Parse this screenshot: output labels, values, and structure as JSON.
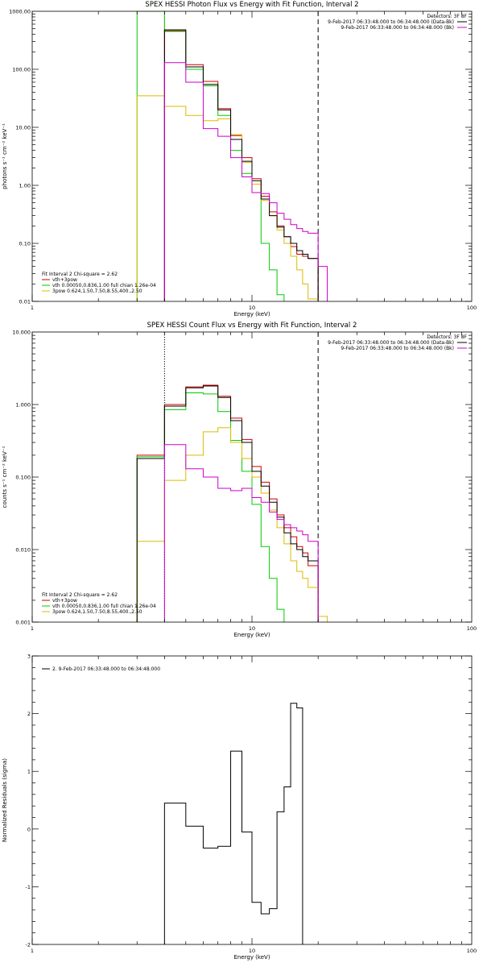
{
  "chart_data": [
    {
      "type": "line",
      "title": "SPEX HESSI Photon Flux vs Energy with Fit Function, Interval 2",
      "xlabel": "Energy (keV)",
      "ylabel": "photons s⁻¹ cm⁻² keV⁻¹",
      "xscale": "log",
      "yscale": "log",
      "xlim": [
        1,
        100
      ],
      "ylim": [
        0.01,
        1000
      ],
      "x_ticks": [
        1,
        10,
        100
      ],
      "x_tick_labels": [
        "1",
        "10",
        "100"
      ],
      "y_ticks": [
        0.01,
        0.1,
        1,
        10,
        100,
        1000
      ],
      "y_tick_labels": [
        "0.01",
        "0.10",
        "1.00",
        "10.00",
        "100.00",
        "1000.00"
      ],
      "detectors_label": "Detectors: 3F 8F",
      "legend_top_right": [
        {
          "label": "9-Feb-2017 06:33:48.000 to 06:34:48.000 (Data-Bk)",
          "color": "#000000"
        },
        {
          "label": "9-Feb-2017 06:33:48.000 to 06:34:48.000 (Bk)",
          "color": "#cc00cc"
        }
      ],
      "fit_legend_header": "Fit Interval 2   Chi-square = 2.62",
      "fit_legend": [
        {
          "label": "vth+3pow",
          "color": "#cc0000"
        },
        {
          "label": "vth 0.00050,0.836,1.00  full chian 1.26e-04",
          "color": "#00cc00"
        },
        {
          "label": "3pow 0.624,1.50,7.50,8.55,400.,2.50",
          "color": "#ddbb00"
        }
      ],
      "vlines": [
        {
          "x": 4.0,
          "style": "dotted",
          "color": "#cc00cc"
        },
        {
          "x": 20.0,
          "style": "dashed",
          "color": "#000000"
        }
      ],
      "edges": [
        3.0,
        4.0,
        5.0,
        6.0,
        7.0,
        8.0,
        9.0,
        10.0,
        11.0,
        12.0,
        13.0,
        14.0,
        15.0,
        16.0,
        17.0,
        18.0,
        20.0,
        22.0
      ],
      "series": [
        {
          "name": "vth+3pow",
          "color": "#cc0000",
          "values": [
            null,
            460,
            120,
            62,
            21,
            7.2,
            3.0,
            1.3,
            0.65,
            0.35,
            0.2,
            0.13,
            0.088,
            0.065,
            0.06,
            0.055,
            null
          ]
        },
        {
          "name": "vth",
          "color": "#00cc00",
          "values": [
            1000,
            450,
            100,
            52,
            16,
            4.0,
            1.6,
            0.75,
            0.1,
            0.035,
            0.013,
            null,
            null,
            null,
            null,
            null,
            null
          ]
        },
        {
          "name": "3pow",
          "color": "#ddbb00",
          "values": [
            35,
            23,
            16,
            13,
            14,
            7.5,
            2.5,
            1.05,
            0.55,
            0.3,
            0.17,
            0.1,
            0.06,
            0.035,
            0.02,
            0.011,
            0.003
          ]
        },
        {
          "name": "Data-Bk",
          "color": "#000000",
          "values": [
            null,
            480,
            110,
            55,
            20,
            6.2,
            2.6,
            1.2,
            0.58,
            0.3,
            0.19,
            0.13,
            0.1,
            0.075,
            0.065,
            0.055,
            null
          ]
        },
        {
          "name": "Bk",
          "color": "#cc00cc",
          "values": [
            null,
            130,
            60,
            9.5,
            7.0,
            3.0,
            1.4,
            0.75,
            0.72,
            0.5,
            0.33,
            0.26,
            0.21,
            0.18,
            0.16,
            0.15,
            0.04
          ]
        }
      ]
    },
    {
      "type": "line",
      "title": "SPEX HESSI Count Flux vs Energy with Fit Function, Interval 2",
      "xlabel": "Energy (keV)",
      "ylabel": "counts s⁻¹ cm⁻² keV⁻¹",
      "xscale": "log",
      "yscale": "log",
      "xlim": [
        1,
        100
      ],
      "ylim": [
        0.001,
        10
      ],
      "x_ticks": [
        1,
        10,
        100
      ],
      "x_tick_labels": [
        "1",
        "10",
        "100"
      ],
      "y_ticks": [
        0.001,
        0.01,
        0.1,
        1,
        10
      ],
      "y_tick_labels": [
        "0.001",
        "0.010",
        "0.100",
        "1.000",
        "10.000"
      ],
      "detectors_label": "Detectors: 3F 8F",
      "legend_top_right": [
        {
          "label": "9-Feb-2017 06:33:48.000 to 06:34:48.000 (Data-Bk)",
          "color": "#000000"
        },
        {
          "label": "9-Feb-2017 06:33:48.000 to 06:34:48.000 (Bk)",
          "color": "#cc00cc"
        }
      ],
      "fit_legend_header": "Fit Interval 2   Chi-square = 2.62",
      "fit_legend": [
        {
          "label": "vth+3pow",
          "color": "#cc0000"
        },
        {
          "label": "vth 0.00050,0.836,1.00  full chian 1.26e-04",
          "color": "#00cc00"
        },
        {
          "label": "3pow 0.624,1.50,7.50,8.55,400.,2.50",
          "color": "#ddbb00"
        }
      ],
      "vlines": [
        {
          "x": 4.0,
          "style": "dotted",
          "color": "#000000"
        },
        {
          "x": 20.0,
          "style": "dashed",
          "color": "#000000"
        }
      ],
      "edges": [
        3.0,
        4.0,
        5.0,
        6.0,
        7.0,
        8.0,
        9.0,
        10.0,
        11.0,
        12.0,
        13.0,
        14.0,
        15.0,
        16.0,
        17.0,
        18.0,
        20.0,
        22.0
      ],
      "series": [
        {
          "name": "vth+3pow",
          "color": "#cc0000",
          "values": [
            0.2,
            1.0,
            1.75,
            1.85,
            1.3,
            0.65,
            0.33,
            0.14,
            0.085,
            0.05,
            0.03,
            0.02,
            0.015,
            0.011,
            0.009,
            0.006,
            null
          ]
        },
        {
          "name": "vth",
          "color": "#00cc00",
          "values": [
            0.19,
            0.85,
            1.45,
            1.4,
            0.8,
            0.32,
            0.12,
            0.042,
            0.011,
            0.004,
            0.0015,
            null,
            null,
            null,
            null,
            null,
            null
          ]
        },
        {
          "name": "3pow",
          "color": "#ddbb00",
          "values": [
            0.013,
            0.09,
            0.2,
            0.42,
            0.48,
            0.3,
            0.18,
            0.1,
            0.06,
            0.035,
            0.02,
            0.012,
            0.007,
            0.005,
            0.004,
            0.003,
            0.0012
          ]
        },
        {
          "name": "Data-Bk",
          "color": "#000000",
          "values": [
            0.18,
            0.95,
            1.7,
            1.8,
            1.25,
            0.6,
            0.3,
            0.12,
            0.075,
            0.045,
            0.028,
            0.017,
            0.012,
            0.01,
            0.008,
            0.007,
            null
          ]
        },
        {
          "name": "Bk",
          "color": "#cc00cc",
          "values": [
            null,
            0.28,
            0.13,
            0.1,
            0.07,
            0.065,
            0.07,
            0.052,
            0.045,
            0.033,
            0.026,
            0.022,
            0.02,
            0.018,
            0.016,
            0.013,
            null
          ]
        }
      ]
    },
    {
      "type": "line",
      "title": "",
      "xlabel": "Energy (keV)",
      "ylabel": "Normalized Residuals (sigma)",
      "xscale": "log",
      "yscale": "linear",
      "xlim": [
        1,
        100
      ],
      "ylim": [
        -2,
        3
      ],
      "x_ticks": [
        1,
        10,
        100
      ],
      "x_tick_labels": [
        "1",
        "10",
        "100"
      ],
      "y_ticks": [
        -2,
        -1,
        0,
        1,
        2,
        3
      ],
      "y_tick_labels": [
        "-2",
        "-1",
        "0",
        "1",
        "2",
        "3"
      ],
      "legend": [
        {
          "label": "2.  9-Feb-2017 06:33:48.000 to 06:34:48.000",
          "color": "#000000"
        }
      ],
      "edges": [
        4.0,
        5.0,
        6.0,
        7.0,
        8.0,
        9.0,
        10.0,
        11.0,
        12.0,
        13.0,
        14.0,
        15.0,
        16.0,
        17.0,
        18.0,
        20.0
      ],
      "series": [
        {
          "name": "",
          "color": "#000000",
          "values": [
            0.45,
            0.05,
            -0.33,
            -0.3,
            1.35,
            -0.05,
            -1.27,
            -1.47,
            -1.38,
            0.3,
            0.73,
            2.18,
            2.1,
            null,
            null
          ]
        }
      ]
    }
  ]
}
